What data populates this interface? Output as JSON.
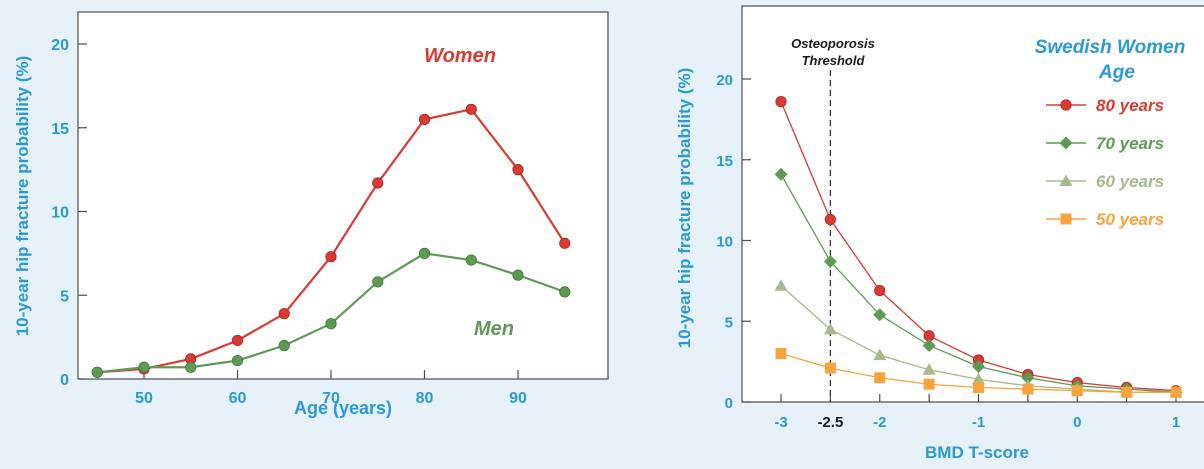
{
  "chart_data": [
    {
      "type": "line",
      "xlabel": "Age (years)",
      "ylabel": "10-year hip fracture probability (%)",
      "xlim": [
        44,
        97
      ],
      "ylim": [
        0,
        22
      ],
      "x_ticks": [
        50,
        60,
        70,
        80,
        90
      ],
      "y_ticks": [
        0,
        5,
        10,
        15,
        20
      ],
      "grid": false,
      "x": [
        45,
        50,
        55,
        60,
        65,
        70,
        75,
        80,
        85,
        90,
        95
      ],
      "series": [
        {
          "name": "Women",
          "color": "#d93b33",
          "marker": "circle",
          "values": [
            0.4,
            0.6,
            1.2,
            2.3,
            3.9,
            7.3,
            11.7,
            15.5,
            16.1,
            12.5,
            8.1
          ]
        },
        {
          "name": "Men",
          "color": "#5f9a55",
          "marker": "circle",
          "values": [
            0.4,
            0.7,
            0.7,
            1.1,
            2.0,
            3.3,
            5.8,
            7.5,
            7.1,
            6.2,
            5.2
          ]
        }
      ],
      "series_labels": {
        "women": "Women",
        "men": "Men"
      }
    },
    {
      "type": "line",
      "xlabel": "BMD T-score",
      "ylabel": "10-year hip fracture probability (%)",
      "xlim": [
        -3.4,
        1.25
      ],
      "ylim": [
        0,
        24
      ],
      "x_ticks": [
        -3,
        -2.5,
        -2,
        -1.5,
        -1,
        -0.5,
        0,
        0.5,
        1
      ],
      "x_tick_labels": [
        "-3",
        "-2.5",
        "-2",
        "",
        "-1",
        "",
        "0",
        "",
        "1"
      ],
      "y_ticks": [
        0,
        5,
        10,
        15,
        20
      ],
      "grid": false,
      "x": [
        -3,
        -2.5,
        -2,
        -1.5,
        -1,
        -0.5,
        0,
        0.5,
        1
      ],
      "threshold": {
        "x": -2.5,
        "label_line1": "Osteoporosis",
        "label_line2": "Threshold"
      },
      "legend": {
        "title_line1": "Swedish Women",
        "title_line2": "Age",
        "title_color": "#2a9ad0",
        "position": "top-right"
      },
      "series": [
        {
          "name": "80 years",
          "color": "#d93b33",
          "marker": "circle",
          "values": [
            18.6,
            11.3,
            6.9,
            4.1,
            2.6,
            1.7,
            1.2,
            0.9,
            0.7
          ]
        },
        {
          "name": "70 years",
          "color": "#5f9a55",
          "marker": "diamond",
          "values": [
            14.1,
            8.7,
            5.4,
            3.5,
            2.2,
            1.5,
            1.0,
            0.8,
            0.6
          ]
        },
        {
          "name": "60 years",
          "color": "#a8b98c",
          "marker": "triangle",
          "values": [
            7.2,
            4.5,
            2.9,
            2.0,
            1.4,
            1.0,
            0.8,
            0.6,
            0.6
          ]
        },
        {
          "name": "50 years",
          "color": "#f7a43c",
          "marker": "square",
          "values": [
            3.0,
            2.1,
            1.5,
            1.1,
            0.9,
            0.8,
            0.7,
            0.6,
            0.6
          ]
        }
      ]
    }
  ]
}
